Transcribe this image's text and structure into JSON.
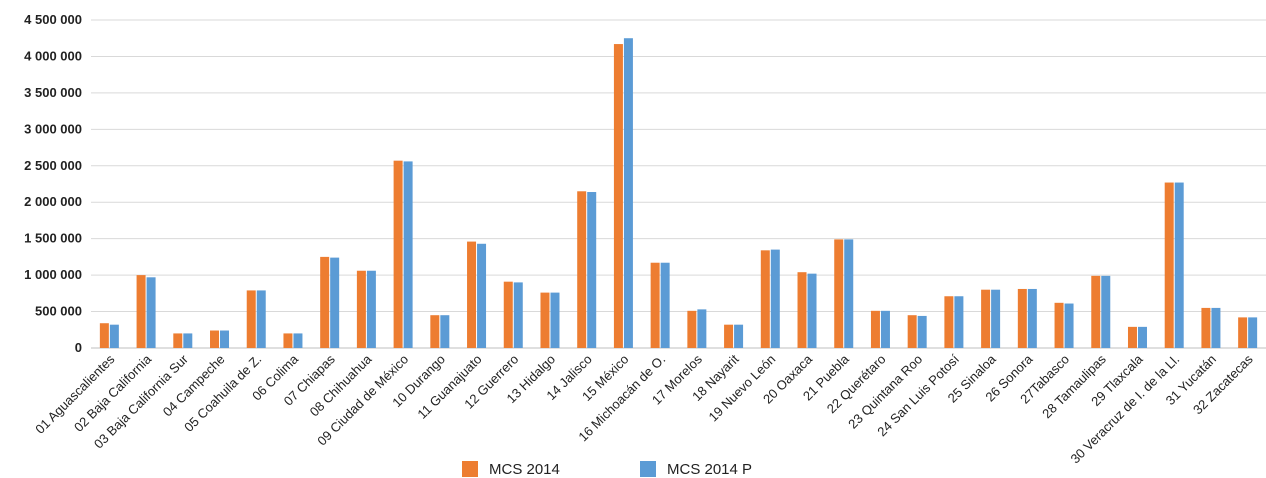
{
  "chart_data": {
    "type": "bar",
    "title": "",
    "xlabel": "",
    "ylabel": "",
    "ylim": [
      0,
      4500000
    ],
    "yticks": [
      0,
      500000,
      1000000,
      1500000,
      2000000,
      2500000,
      3000000,
      3500000,
      4000000,
      4500000
    ],
    "ytick_labels": [
      "0",
      "500 000",
      "1 000 000",
      "1 500 000",
      "2 000 000",
      "2 500 000",
      "3 000 000",
      "3 500 000",
      "4 000 000",
      "4 500 000"
    ],
    "grid": true,
    "legend_position": "bottom",
    "categories": [
      "01 Aguascalientes",
      "02 Baja California",
      "03 Baja California Sur",
      "04 Campeche",
      "05 Coahuila de Z.",
      "06 Colima",
      "07 Chiapas",
      "08 Chihuahua",
      "09 Ciudad de México",
      "10 Durango",
      "11 Guanajuato",
      "12 Guerrero",
      "13 Hidalgo",
      "14 Jalisco",
      "15 México",
      "16 Michoacán de O.",
      "17 Morelos",
      "18 Nayarit",
      "19 Nuevo León",
      "20 Oaxaca",
      "21 Puebla",
      "22 Querétaro",
      "23 Quintana Roo",
      "24 San Luis Potosí",
      "25 Sinaloa",
      "26 Sonora",
      "27Tabasco",
      "28 Tamaulipas",
      "29 Tlaxcala",
      "30 Veracruz de I. de la Ll.",
      "31 Yucatán",
      "32 Zacatecas"
    ],
    "series": [
      {
        "name": "MCS 2014",
        "color": "#ED7D31",
        "values": [
          340000,
          1000000,
          200000,
          240000,
          790000,
          200000,
          1250000,
          1060000,
          2570000,
          450000,
          1460000,
          910000,
          760000,
          2150000,
          4170000,
          1170000,
          510000,
          320000,
          1340000,
          1040000,
          1490000,
          510000,
          450000,
          710000,
          800000,
          810000,
          620000,
          990000,
          290000,
          2270000,
          550000,
          420000
        ]
      },
      {
        "name": "MCS 2014 P",
        "color": "#5B9BD5",
        "values": [
          320000,
          970000,
          200000,
          240000,
          790000,
          200000,
          1240000,
          1060000,
          2560000,
          450000,
          1430000,
          900000,
          760000,
          2140000,
          4250000,
          1170000,
          530000,
          320000,
          1350000,
          1020000,
          1490000,
          510000,
          440000,
          710000,
          800000,
          810000,
          610000,
          990000,
          290000,
          2270000,
          550000,
          420000
        ]
      }
    ]
  }
}
